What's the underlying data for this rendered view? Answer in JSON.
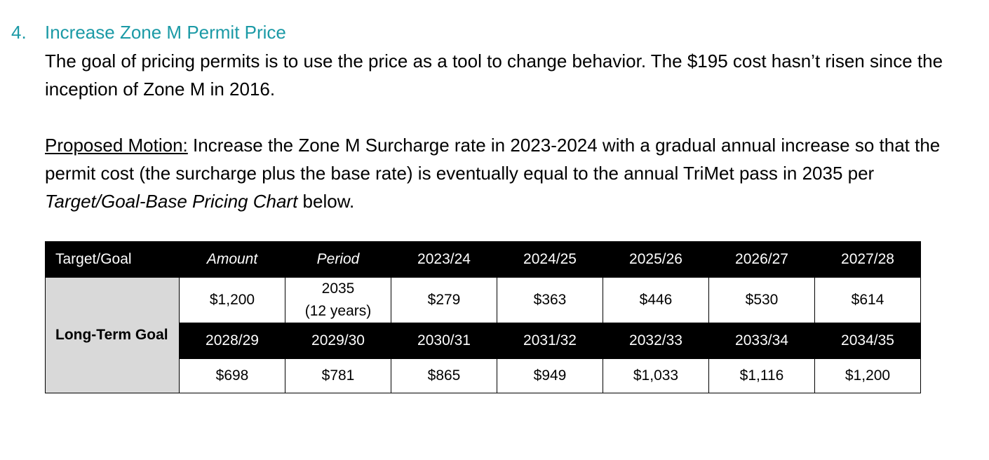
{
  "section": {
    "number": "4.",
    "title": "Increase Zone M Permit Price"
  },
  "paragraph1": "The goal of pricing permits is to use the price as a tool to change behavior. The $195 cost hasn’t risen since the inception of Zone M in 2016.",
  "motion": {
    "label": "Proposed Motion:",
    "text_before": " Increase the Zone M Surcharge rate in 2023-2024 with a gradual annual increase so that the permit cost (the surcharge plus the base rate) is eventually equal to the annual TriMet pass in 2035 per ",
    "chart_ref": "Target/Goal-Base Pricing Chart",
    "text_after": " below."
  },
  "table": {
    "headers": [
      "Target/Goal",
      "Amount",
      "Period",
      "2023/24",
      "2024/25",
      "2025/26",
      "2026/27",
      "2027/28"
    ],
    "goal_label": "Long-Term Goal",
    "row1": [
      "$1,200",
      "2035",
      "(12 years)",
      "$279",
      "$363",
      "$446",
      "$530",
      "$614"
    ],
    "headers2": [
      "2028/29",
      "2029/30",
      "2030/31",
      "2031/32",
      "2032/33",
      "2033/34",
      "2034/35"
    ],
    "row2": [
      "$698",
      "$781",
      "$865",
      "$949",
      "$1,033",
      "$1,116",
      "$1,200"
    ]
  }
}
